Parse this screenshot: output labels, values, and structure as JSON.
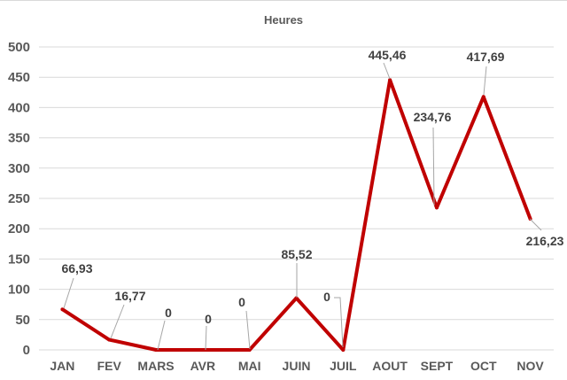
{
  "chart_data": {
    "type": "line",
    "title": "Heures",
    "xlabel": "",
    "ylabel": "",
    "categories": [
      "JAN",
      "FEV",
      "MARS",
      "AVR",
      "MAI",
      "JUIN",
      "JUIL",
      "AOUT",
      "SEPT",
      "OCT",
      "NOV"
    ],
    "series": [
      {
        "values": [
          66.93,
          16.77,
          0,
          0,
          0,
          85.52,
          0,
          445.46,
          234.76,
          417.69,
          216.23
        ],
        "labels": [
          "66,93",
          "16,77",
          "0",
          "0",
          "0",
          "85,52",
          "0",
          "445,46",
          "234,76",
          "417,69",
          "216,23"
        ],
        "color": "#c00000"
      }
    ],
    "ylim": [
      0,
      500
    ],
    "yticks": [
      "0",
      "50",
      "100",
      "150",
      "200",
      "250",
      "300",
      "350",
      "400",
      "450",
      "500"
    ],
    "grid": true,
    "legend": "none"
  }
}
